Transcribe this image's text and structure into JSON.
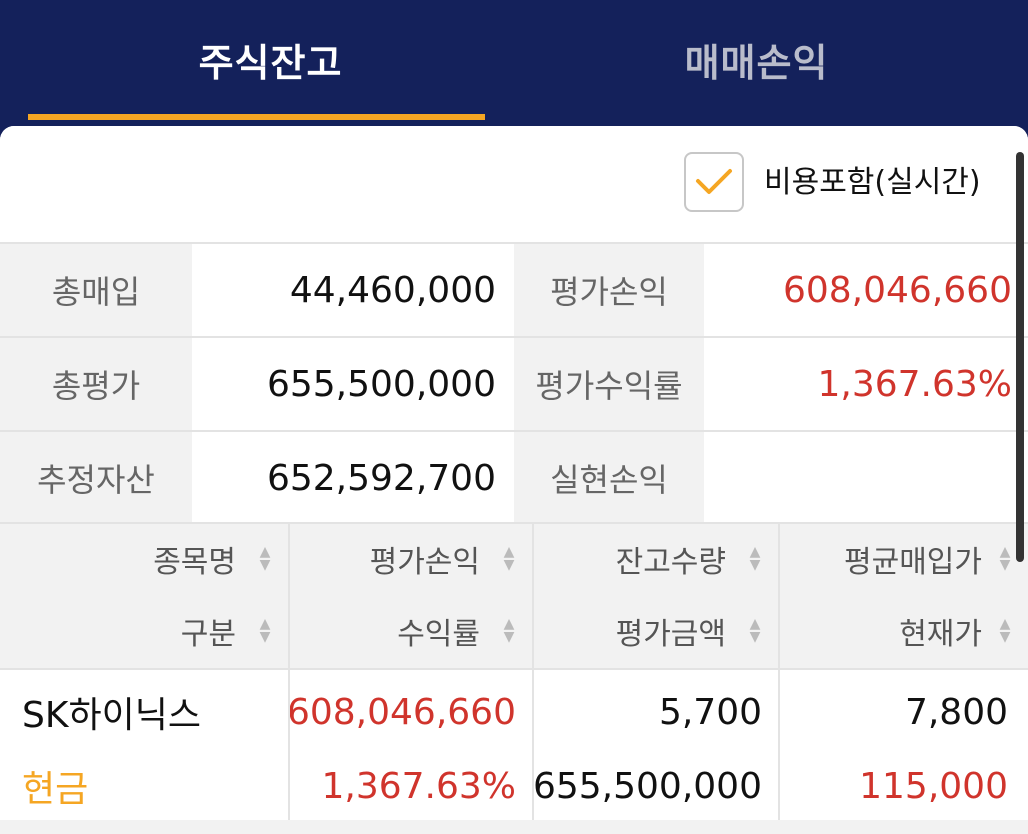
{
  "tabs": [
    {
      "label": "주식잔고",
      "active": true
    },
    {
      "label": "매매손익",
      "active": false
    }
  ],
  "include_costs": {
    "label": "비용포함(실시간)",
    "checked": true
  },
  "summary": {
    "row1": {
      "label1": "총매입",
      "value1": "44,460,000",
      "label2": "평가손익",
      "value2": "608,046,660"
    },
    "row2": {
      "label1": "총평가",
      "value1": "655,500,000",
      "label2": "평가수익률",
      "value2": "1,367.63%"
    },
    "row3": {
      "label1": "추정자산",
      "value1": "652,592,700",
      "label2": "실현손익",
      "value2": ""
    }
  },
  "columns": {
    "row1": [
      "종목명",
      "평가손익",
      "잔고수량",
      "평균매입가"
    ],
    "row2": [
      "구분",
      "수익률",
      "평가금액",
      "현재가"
    ]
  },
  "holding": {
    "name": "SK하이닉스",
    "type": "현금",
    "profit": "608,046,660",
    "return_rate": "1,367.63%",
    "quantity": "5,700",
    "eval_amount": "655,500,000",
    "avg_price": "7,800",
    "current_price": "115,000"
  },
  "colors": {
    "header_bg": "#14215b",
    "accent": "#f5a623",
    "positive": "#d0342c"
  }
}
